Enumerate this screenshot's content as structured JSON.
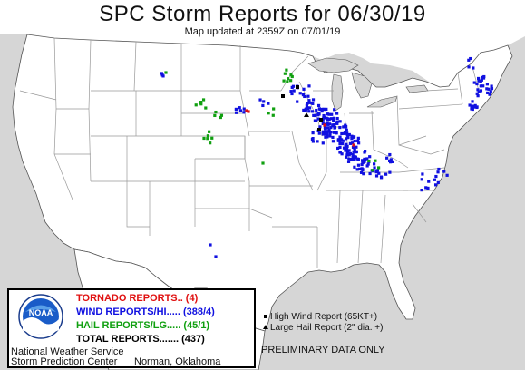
{
  "title": "SPC Storm Reports for 06/30/19",
  "subtitle": "Map updated at 2359Z on 07/01/19",
  "legend": {
    "tornado": "TORNADO REPORTS.. (4)",
    "wind": "WIND REPORTS/HI..... (388/4)",
    "hail": "HAIL REPORTS/LG..... (45/1)",
    "total": "TOTAL REPORTS....... (437)",
    "logo_text": "NOAA",
    "office_line1": "National Weather Service",
    "office_line2": "Storm Prediction Center",
    "location": "Norman, Oklahoma"
  },
  "key": {
    "high_wind": "High Wind Report (65KT+)",
    "large_hail": "Large Hail Report (2\" dia. +)"
  },
  "prelim": "PRELIMINARY DATA ONLY",
  "colors": {
    "land": "#ffffff",
    "water": "#d6d6d6",
    "state_border": "#999999",
    "tornado": "#e01010",
    "wind": "#1010e0",
    "hail": "#10a010"
  }
}
